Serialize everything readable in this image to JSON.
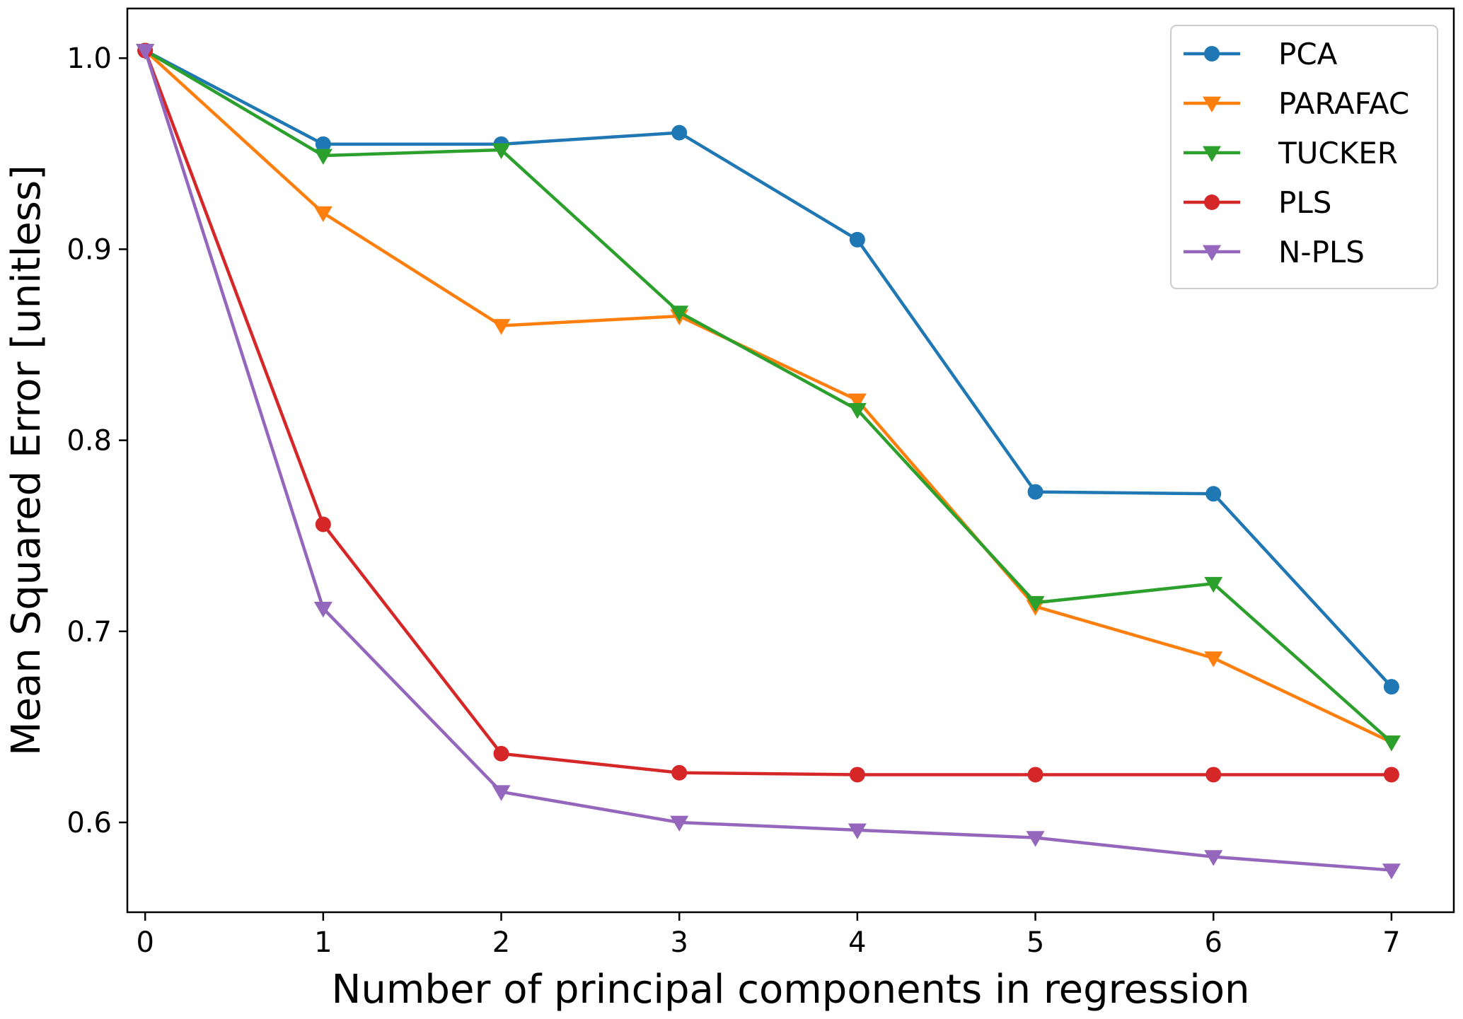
{
  "chart_data": {
    "type": "line",
    "title": "",
    "xlabel": "Number of principal components in regression",
    "ylabel": "Mean Squared Error [unitless]",
    "x": [
      0,
      1,
      2,
      3,
      4,
      5,
      6,
      7
    ],
    "xlim": [
      -0.1,
      7.35
    ],
    "ylim": [
      0.553,
      1.026
    ],
    "xticks": [
      0,
      1,
      2,
      3,
      4,
      5,
      6,
      7
    ],
    "xtick_labels": [
      "0",
      "1",
      "2",
      "3",
      "4",
      "5",
      "6",
      "7"
    ],
    "yticks": [
      0.6,
      0.7,
      0.8,
      0.9,
      1.0
    ],
    "ytick_labels": [
      "0.6",
      "0.7",
      "0.8",
      "0.9",
      "1.0"
    ],
    "grid": false,
    "legend_position": "top-right",
    "series": [
      {
        "name": "PCA",
        "color": "#1f77b4",
        "marker": "circle",
        "values": [
          1.004,
          0.955,
          0.955,
          0.961,
          0.905,
          0.773,
          0.772,
          0.671
        ]
      },
      {
        "name": "PARAFAC",
        "color": "#ff7f0e",
        "marker": "triangle-down",
        "values": [
          1.004,
          0.919,
          0.86,
          0.865,
          0.821,
          0.713,
          0.686,
          0.642
        ]
      },
      {
        "name": "TUCKER",
        "color": "#2ca02c",
        "marker": "triangle-down",
        "values": [
          1.004,
          0.949,
          0.952,
          0.867,
          0.816,
          0.715,
          0.725,
          0.642
        ]
      },
      {
        "name": "PLS",
        "color": "#d62728",
        "marker": "circle",
        "values": [
          1.004,
          0.756,
          0.636,
          0.626,
          0.625,
          0.625,
          0.625,
          0.625
        ]
      },
      {
        "name": "N-PLS",
        "color": "#9467bd",
        "marker": "triangle-down",
        "values": [
          1.004,
          0.712,
          0.616,
          0.6,
          0.596,
          0.592,
          0.582,
          0.575
        ]
      }
    ]
  }
}
